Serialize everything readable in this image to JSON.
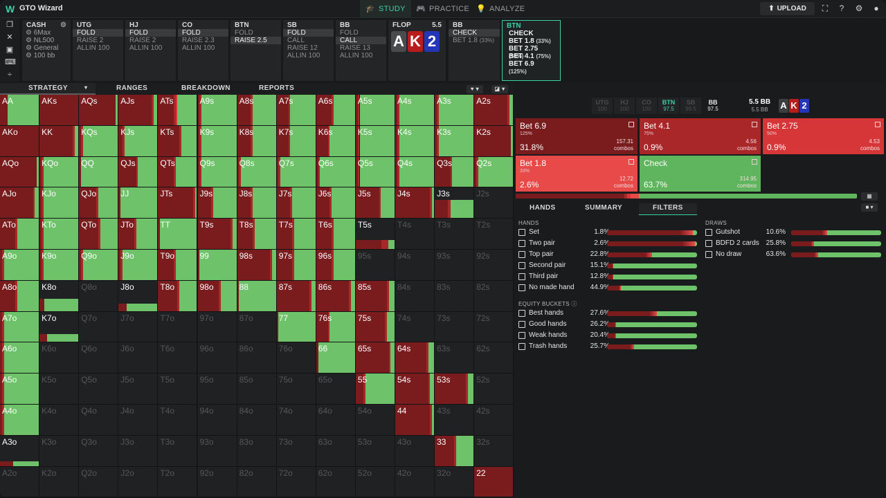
{
  "app": {
    "logo": "W",
    "name": "GTO Wizard"
  },
  "nav": [
    {
      "label": "STUDY",
      "icon": "🎓"
    },
    {
      "label": "PRACTICE",
      "icon": "🎮"
    },
    {
      "label": "ANALYZE",
      "icon": "💡"
    }
  ],
  "upload": {
    "label": "UPLOAD",
    "icon": "⬆"
  },
  "top_icons": [
    "fullscreen-icon",
    "help-icon",
    "gear-icon",
    "user-icon"
  ],
  "left_tools": [
    {
      "name": "bookmark-icon",
      "glyph": "❐"
    },
    {
      "name": "close-icon",
      "glyph": "✕"
    },
    {
      "name": "save-icon",
      "glyph": "▣"
    },
    {
      "name": "gamepad-icon",
      "glyph": "⌨"
    },
    {
      "name": "split-icon",
      "glyph": "÷"
    }
  ],
  "cash": {
    "title": "CASH",
    "rows": [
      "6Max",
      "NL500",
      "General",
      "100 bb"
    ]
  },
  "positions": [
    {
      "name": "UTG",
      "actions": [
        {
          "t": "FOLD",
          "sel": true
        },
        {
          "t": "RAISE 2"
        },
        {
          "t": "ALLIN 100"
        }
      ]
    },
    {
      "name": "HJ",
      "actions": [
        {
          "t": "FOLD",
          "sel": true
        },
        {
          "t": "RAISE 2"
        },
        {
          "t": "ALLIN 100"
        }
      ]
    },
    {
      "name": "CO",
      "actions": [
        {
          "t": "FOLD",
          "sel": true
        },
        {
          "t": "RAISE 2.3"
        },
        {
          "t": "ALLIN 100"
        }
      ]
    },
    {
      "name": "BTN",
      "actions": [
        {
          "t": "FOLD"
        },
        {
          "t": "RAISE 2.5",
          "sel": true
        }
      ]
    },
    {
      "name": "SB",
      "actions": [
        {
          "t": "FOLD",
          "sel": true
        },
        {
          "t": "CALL"
        },
        {
          "t": "RAISE 12"
        },
        {
          "t": "ALLIN 100"
        }
      ]
    },
    {
      "name": "BB",
      "actions": [
        {
          "t": "FOLD"
        },
        {
          "t": "CALL",
          "sel": true
        },
        {
          "t": "RAISE 13"
        },
        {
          "t": "ALLIN 100"
        }
      ]
    }
  ],
  "flop": {
    "label": "FLOP",
    "pot": "5.5",
    "cards": [
      {
        "r": "A",
        "c": "#4a4b4d"
      },
      {
        "r": "K",
        "c": "#b81c1c"
      },
      {
        "r": "2",
        "c": "#2436b8"
      }
    ]
  },
  "bbcard": {
    "name": "BB",
    "check": "CHECK",
    "bet": "BET 1.8",
    "pct": "(33%)"
  },
  "btncard": {
    "name": "BTN",
    "options": [
      {
        "t": "CHECK",
        "p": ""
      },
      {
        "t": "BET 1.8",
        "p": "(33%)"
      },
      {
        "t": "BET 2.75",
        "p": "(50%)"
      },
      {
        "t": "BET 4.1",
        "p": "(75%)"
      },
      {
        "t": "BET 6.9",
        "p": "(125%)"
      }
    ]
  },
  "tabs": [
    "STRATEGY",
    "RANGES",
    "BREAKDOWN",
    "REPORTS"
  ],
  "stacks": [
    {
      "n": "UTG",
      "v": "100"
    },
    {
      "n": "HJ",
      "v": "100"
    },
    {
      "n": "CO",
      "v": "100"
    },
    {
      "n": "BTN",
      "v": "97.5",
      "on": true
    },
    {
      "n": "SB",
      "v": "99.5"
    },
    {
      "n": "BB",
      "v": "97.5",
      "wh": true
    }
  ],
  "pot": {
    "label": "5.5 BB",
    "sub": "5.5 BB"
  },
  "actions": [
    {
      "name": "Bet 6.9",
      "sub": "125%",
      "pct": "31.8%",
      "combos": "157.31",
      "clbl": "combos",
      "color": "#7a1b1e",
      "freq": 0.318
    },
    {
      "name": "Bet 4.1",
      "sub": "75%",
      "pct": "0.9%",
      "combos": "4.56",
      "clbl": "combos",
      "color": "#a92629",
      "freq": 0.009
    },
    {
      "name": "Bet 2.75",
      "sub": "50%",
      "pct": "0.9%",
      "combos": "4.53",
      "clbl": "combos",
      "color": "#d63637",
      "freq": 0.009
    },
    {
      "name": "Bet 1.8",
      "sub": "33%",
      "pct": "2.6%",
      "combos": "12.72",
      "clbl": "combos",
      "color": "#e84a4a",
      "freq": 0.026
    },
    {
      "name": "Check",
      "sub": "",
      "pct": "63.7%",
      "combos": "314.95",
      "clbl": "combos",
      "color": "#5fb55d",
      "freq": 0.637
    }
  ],
  "subtabs": [
    "HANDS",
    "SUMMARY",
    "FILTERS"
  ],
  "filters": {
    "hands_title": "HANDS",
    "hands": [
      {
        "n": "Set",
        "p": "1.8%",
        "b": 0.95
      },
      {
        "n": "Two pair",
        "p": "2.6%",
        "b": 0.98
      },
      {
        "n": "Top pair",
        "p": "22.8%",
        "b": 0.5
      },
      {
        "n": "Second pair",
        "p": "15.1%",
        "b": 0.07
      },
      {
        "n": "Third pair",
        "p": "12.8%",
        "b": 0.07
      },
      {
        "n": "No made hand",
        "p": "44.9%",
        "b": 0.15
      }
    ],
    "eq_title": "EQUITY BUCKETS",
    "equity": [
      {
        "n": "Best hands",
        "p": "27.6%",
        "b": 0.55
      },
      {
        "n": "Good hands",
        "p": "26.2%",
        "b": 0.1
      },
      {
        "n": "Weak hands",
        "p": "20.4%",
        "b": 0.1
      },
      {
        "n": "Trash hands",
        "p": "25.7%",
        "b": 0.3
      }
    ],
    "draws_title": "DRAWS",
    "draws": [
      {
        "n": "Gutshot",
        "p": "10.6%",
        "b": 0.4
      },
      {
        "n": "BDFD 2 cards",
        "p": "25.8%",
        "b": 0.25
      },
      {
        "n": "No draw",
        "p": "63.6%",
        "b": 0.3
      }
    ]
  },
  "colors": {
    "accent": "#3bd1a4",
    "check": "#5fb55d",
    "bet_big": "#7a1b1e",
    "bet_mid": "#a92629",
    "bet_small": "#e84a4a"
  },
  "grid": {
    "ranks": [
      "A",
      "K",
      "Q",
      "J",
      "T",
      "9",
      "8",
      "7",
      "6",
      "5",
      "4",
      "3",
      "2"
    ],
    "dim": [
      "J2s",
      "T4s",
      "T3s",
      "T2s",
      "95s",
      "94s",
      "93s",
      "92s",
      "Q8o",
      "84s",
      "83s",
      "82s",
      "Q7o",
      "J7o",
      "T7o",
      "97o",
      "87o",
      "74s",
      "73s",
      "72s",
      "K6o",
      "Q6o",
      "J6o",
      "T6o",
      "96o",
      "86o",
      "76o",
      "63s",
      "62s",
      "K5o",
      "Q5o",
      "J5o",
      "T5o",
      "95o",
      "85o",
      "75o",
      "65o",
      "52s",
      "K4o",
      "Q4o",
      "J4o",
      "T4o",
      "94o",
      "84o",
      "74o",
      "64o",
      "54o",
      "43s",
      "42s",
      "K3o",
      "Q3o",
      "J3o",
      "T3o",
      "93o",
      "83o",
      "73o",
      "63o",
      "53o",
      "43o",
      "32s",
      "A2o",
      "K2o",
      "Q2o",
      "J2o",
      "T2o",
      "92o",
      "82o",
      "72o",
      "62o",
      "52o",
      "42o",
      "32o"
    ],
    "freqs": {
      "AA": [
        0.2,
        0,
        0,
        0.8
      ],
      "AKs": [
        1,
        0,
        0,
        0
      ],
      "AQs": [
        0.95,
        0,
        0,
        0.05
      ],
      "AJs": [
        0.85,
        0.05,
        0,
        0.1
      ],
      "ATs": [
        0.4,
        0.05,
        0.05,
        0.5
      ],
      "A9s": [
        0.05,
        0.05,
        0,
        0.9
      ],
      "A8s": [
        0.35,
        0.05,
        0,
        0.6
      ],
      "A7s": [
        0.3,
        0.05,
        0,
        0.65
      ],
      "A6s": [
        0.4,
        0.05,
        0,
        0.55
      ],
      "A5s": [
        0.05,
        0.05,
        0,
        0.9
      ],
      "A4s": [
        0.05,
        0.05,
        0,
        0.9
      ],
      "A3s": [
        0.05,
        0.05,
        0,
        0.9
      ],
      "A2s": [
        0.85,
        0.05,
        0,
        0.1
      ],
      "AKo": [
        1,
        0,
        0,
        0
      ],
      "KK": [
        0.85,
        0.05,
        0,
        0.1
      ],
      "KQs": [
        0.05,
        0.05,
        0,
        0.9
      ],
      "KJs": [
        0.1,
        0.05,
        0,
        0.85
      ],
      "KTs": [
        0.55,
        0.05,
        0,
        0.4
      ],
      "K9s": [
        0.05,
        0.05,
        0,
        0.9
      ],
      "K8s": [
        0.35,
        0.05,
        0,
        0.6
      ],
      "K7s": [
        0.3,
        0.05,
        0,
        0.65
      ],
      "K6s": [
        0.3,
        0.05,
        0,
        0.65
      ],
      "K5s": [
        0.05,
        0.05,
        0,
        0.9
      ],
      "K4s": [
        0.05,
        0.05,
        0,
        0.9
      ],
      "K3s": [
        0.05,
        0.05,
        0,
        0.9
      ],
      "K2s": [
        0.95,
        0,
        0,
        0.05
      ],
      "AQo": [
        0.95,
        0,
        0,
        0.05
      ],
      "KQo": [
        0.05,
        0.05,
        0,
        0.9
      ],
      "QQ": [
        0.05,
        0,
        0,
        0.95
      ],
      "QJs": [
        0.45,
        0.05,
        0,
        0.5
      ],
      "QTs": [
        0.4,
        0.05,
        0,
        0.55
      ],
      "Q9s": [
        0.05,
        0.05,
        0,
        0.9
      ],
      "Q8s": [
        0.05,
        0.05,
        0,
        0.9
      ],
      "Q7s": [
        0.05,
        0.05,
        0,
        0.9
      ],
      "Q6s": [
        0.05,
        0.05,
        0,
        0.9
      ],
      "Q5s": [
        0.05,
        0.05,
        0,
        0.9
      ],
      "Q4s": [
        0.05,
        0.05,
        0,
        0.9
      ],
      "Q3s": [
        0.4,
        0.05,
        0,
        0.55
      ],
      "Q2s": [
        0.05,
        0.05,
        0,
        0.9
      ],
      "AJo": [
        0.85,
        0.05,
        0,
        0.1
      ],
      "KJo": [
        0.05,
        0.05,
        0,
        0.9
      ],
      "QJo": [
        0.45,
        0.05,
        0,
        0.5
      ],
      "JJ": [
        0.05,
        0,
        0,
        0.95
      ],
      "JTs": [
        0.9,
        0.05,
        0,
        0.05
      ],
      "J9s": [
        0.35,
        0.05,
        0,
        0.6
      ],
      "J8s": [
        0.35,
        0.05,
        0,
        0.6
      ],
      "J7s": [
        0.35,
        0.05,
        0,
        0.6
      ],
      "J6s": [
        0.35,
        0.05,
        0,
        0.6
      ],
      "J5s": [
        0.6,
        0.05,
        0,
        0.35
      ],
      "J4s": [
        0.9,
        0.05,
        0,
        0.05
      ],
      "J3s": [
        0.2,
        0.05,
        0,
        0.35,
        0.4
      ],
      "J2s": [
        0,
        0,
        0,
        0,
        1
      ],
      "ATo": [
        0.4,
        0.05,
        0,
        0.55
      ],
      "KTo": [
        0.05,
        0.05,
        0,
        0.9
      ],
      "QTo": [
        0.5,
        0.05,
        0,
        0.45
      ],
      "JTo": [
        0.4,
        0.05,
        0,
        0.55
      ],
      "TT": [
        0.05,
        0,
        0,
        0.95
      ],
      "T9s": [
        0.85,
        0.05,
        0,
        0.1
      ],
      "T8s": [
        0.4,
        0.05,
        0,
        0.55
      ],
      "T7s": [
        0.4,
        0.05,
        0,
        0.55
      ],
      "T6s": [
        0.4,
        0.05,
        0,
        0.55
      ],
      "T5s": [
        0.2,
        0.05,
        0,
        0.05,
        0.7
      ],
      "A9o": [
        0.05,
        0.05,
        0,
        0.9
      ],
      "K9o": [
        0.05,
        0.05,
        0,
        0.9
      ],
      "Q9o": [
        0.05,
        0.05,
        0,
        0.9
      ],
      "J9o": [
        0.05,
        0.05,
        0,
        0.9
      ],
      "T9o": [
        0.4,
        0.05,
        0,
        0.55
      ],
      "99": [
        0.05,
        0,
        0,
        0.95
      ],
      "98s": [
        0.85,
        0.05,
        0,
        0.1
      ],
      "97s": [
        0.4,
        0.05,
        0,
        0.55
      ],
      "96s": [
        0.4,
        0.05,
        0,
        0.55
      ],
      "A8o": [
        0.4,
        0.05,
        0,
        0.55
      ],
      "K8o": [
        0.05,
        0,
        0,
        0.35,
        0.6
      ],
      "J8o": [
        0.05,
        0,
        0,
        0.2,
        0.75
      ],
      "T8o": [
        0.5,
        0.05,
        0,
        0.45
      ],
      "98o": [
        0.55,
        0.05,
        0,
        0.4
      ],
      "88": [
        0.05,
        0,
        0,
        0.95
      ],
      "87s": [
        0.85,
        0.05,
        0,
        0.1
      ],
      "86s": [
        0.85,
        0.05,
        0,
        0.1
      ],
      "85s": [
        0.8,
        0.05,
        0,
        0.15
      ],
      "A7o": [
        0.05,
        0.05,
        0,
        0.9
      ],
      "K7o": [
        0.05,
        0,
        0,
        0.2,
        0.75
      ],
      "77": [
        0.05,
        0,
        0,
        0.95
      ],
      "76s": [
        0.3,
        0.05,
        0,
        0.65
      ],
      "75s": [
        0.75,
        0.05,
        0,
        0.2
      ],
      "A6o": [
        0.05,
        0.05,
        0,
        0.9
      ],
      "66": [
        0.05,
        0,
        0,
        0.95
      ],
      "65s": [
        0.85,
        0.05,
        0,
        0.1
      ],
      "64s": [
        0.8,
        0.05,
        0,
        0.15
      ],
      "A5o": [
        0.05,
        0.05,
        0,
        0.9
      ],
      "55": [
        0.2,
        0.05,
        0,
        0.75
      ],
      "54s": [
        0.85,
        0.05,
        0,
        0.1
      ],
      "53s": [
        0.8,
        0.05,
        0,
        0.15
      ],
      "A4o": [
        0.05,
        0.05,
        0,
        0.9
      ],
      "44": [
        0.9,
        0.05,
        0,
        0.05
      ],
      "A3o": [
        0.05,
        0,
        0,
        0.1,
        0.85
      ],
      "33": [
        0.5,
        0.05,
        0,
        0.45
      ],
      "22": [
        1,
        0,
        0,
        0
      ]
    }
  }
}
